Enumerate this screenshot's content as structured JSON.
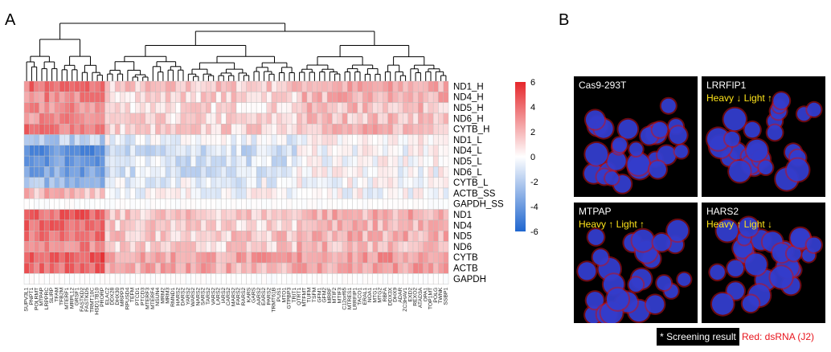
{
  "panel_a_label": "A",
  "panel_b_label": "B",
  "chart_data": {
    "type": "heatmap",
    "rows": [
      "ND1_H",
      "ND4_H",
      "ND5_H",
      "ND6_H",
      "CYTB_H",
      "ND1_L",
      "ND4_L",
      "ND5_L",
      "ND6_L",
      "CYTB_L",
      "ACTB_SS",
      "GAPDH_SS",
      "ND1",
      "ND4",
      "ND5",
      "ND6",
      "CYTB",
      "ACTB",
      "GAPDH"
    ],
    "colorbar": {
      "min": -6,
      "max": 6,
      "ticks": [
        6,
        4,
        2,
        0,
        -2,
        -4,
        -6
      ],
      "low_color": "#1f66cf",
      "mid_color": "#ffffff",
      "high_color": "#e5272b"
    },
    "row_means": [
      4.0,
      3.5,
      3.0,
      3.0,
      3.5,
      -1.5,
      -3.5,
      -3.0,
      -3.0,
      -2.0,
      1.0,
      0.0,
      4.5,
      4.0,
      4.0,
      3.5,
      5.0,
      4.5,
      0.0
    ],
    "column_groups": [
      {
        "count": 16,
        "offset": [
          4,
          3,
          3,
          3,
          4,
          -2,
          -5,
          -4.5,
          -4,
          -3,
          3,
          0,
          4,
          4,
          3.5,
          3,
          4.5,
          4,
          0
        ]
      },
      {
        "count": 38,
        "offset": [
          -1,
          -1,
          -1,
          -1,
          -1,
          0.5,
          1,
          1,
          1,
          1,
          -1,
          0,
          -1.5,
          -1.5,
          -1,
          -1,
          0,
          0,
          0
        ]
      },
      {
        "count": 30,
        "offset": [
          0.5,
          0.5,
          0.5,
          0.5,
          0.5,
          2,
          3.5,
          3,
          3,
          2,
          -1,
          0,
          0,
          0,
          0.5,
          0.5,
          0.5,
          0.5,
          0
        ]
      }
    ],
    "column_labels": [
      "SUPV3L1",
      "PNPT1",
      "POLRMT",
      "MTPAP",
      "LRPPRC",
      "SLIRP",
      "TFAM",
      "TFB2M",
      "MTERF1",
      "MRPL12",
      "GRSF1",
      "FASTKD2",
      "FASTKD5",
      "TRMT10C",
      "HSD17B10",
      "PRORP",
      "ELAC2",
      "DDX28",
      "DHX30",
      "MRPP3",
      "RPUSD4",
      "TEFM",
      "PTCD1",
      "PTCD3",
      "MTERF3",
      "MTERF4",
      "NSUN4",
      "MRM2",
      "MRM3",
      "RMND1",
      "HARS2",
      "DARS2",
      "YARS2",
      "WARS2",
      "NARS2",
      "SARS2",
      "TARS2",
      "VARS2",
      "LARS2",
      "IARS2",
      "CARS2",
      "MARS2",
      "FARS2",
      "RARS2",
      "KARS",
      "GARS",
      "AARS2",
      "EARS2",
      "PARS2",
      "TRMT61B",
      "PUS1",
      "MTO1",
      "GTPBP3",
      "TRIT1",
      "QTRT1",
      "MTFMT",
      "TUFM",
      "TSFM",
      "GFM1",
      "GFM2",
      "MRRF",
      "MTIF2",
      "MTIF3",
      "C12orf65",
      "MTRES1",
      "LRRFIP1",
      "TACO1",
      "ERAL1",
      "NOA1",
      "MTG1",
      "MTG2",
      "RBFA",
      "DDX3X",
      "DHX9",
      "ADAR",
      "ZC3HAV1",
      "EXD2",
      "REXO2",
      "ATAD3A",
      "OPA1",
      "TOP1MT",
      "POLG",
      "TWNK",
      "SSBP1"
    ]
  },
  "panel_b": {
    "images": [
      {
        "title": "Cas9-293T",
        "screen": ""
      },
      {
        "title": "LRRFIP1",
        "screen": "Heavy ↓ Light ↑"
      },
      {
        "title": "MTPAP",
        "screen": "Heavy ↑ Light ↑"
      },
      {
        "title": "HARS2",
        "screen": "Heavy ↑ Light ↓"
      }
    ],
    "legend_screening": "* Screening result",
    "legend_red": "Red: dsRNA (J2)"
  }
}
